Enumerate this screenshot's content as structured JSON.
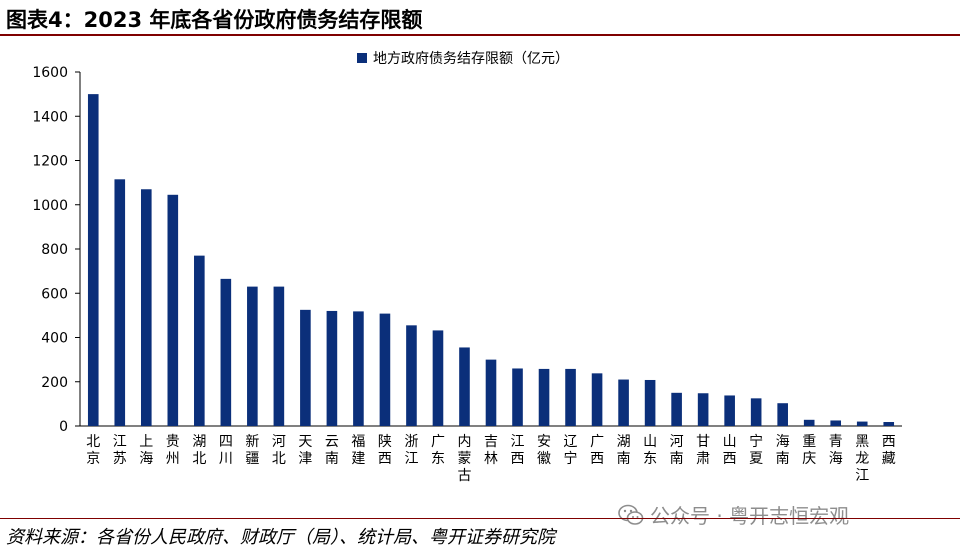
{
  "title": "图表4：2023 年底各省份政府债务结存限额",
  "source": "资料来源：各省份人民政府、财政厅（局）、统计局、粤开证券研究院",
  "watermark": "公众号 · 粤开志恒宏观",
  "colors": {
    "bar": "#0b2f7a",
    "rule": "#7f0000"
  },
  "chart_data": {
    "type": "bar",
    "categories": [
      "北京",
      "江苏",
      "上海",
      "贵州",
      "湖北",
      "四川",
      "新疆",
      "河北",
      "天津",
      "云南",
      "福建",
      "陕西",
      "浙江",
      "广东",
      "内蒙古",
      "吉林",
      "江西",
      "安徽",
      "辽宁",
      "广西",
      "湖南",
      "山东",
      "河南",
      "甘肃",
      "山西",
      "宁夏",
      "海南",
      "重庆",
      "青海",
      "黑龙江",
      "西藏"
    ],
    "series": [
      {
        "name": "地方政府债务结存限额（亿元）",
        "values": [
          1500,
          1115,
          1070,
          1045,
          770,
          665,
          630,
          630,
          525,
          520,
          518,
          508,
          455,
          432,
          355,
          300,
          260,
          258,
          258,
          238,
          210,
          208,
          150,
          148,
          138,
          125,
          103,
          28,
          25,
          20,
          18
        ]
      }
    ],
    "ylim": [
      0,
      1600
    ],
    "yticks": [
      0,
      200,
      400,
      600,
      800,
      1000,
      1200,
      1400,
      1600
    ],
    "legend_position": "top-center",
    "grid": false
  }
}
